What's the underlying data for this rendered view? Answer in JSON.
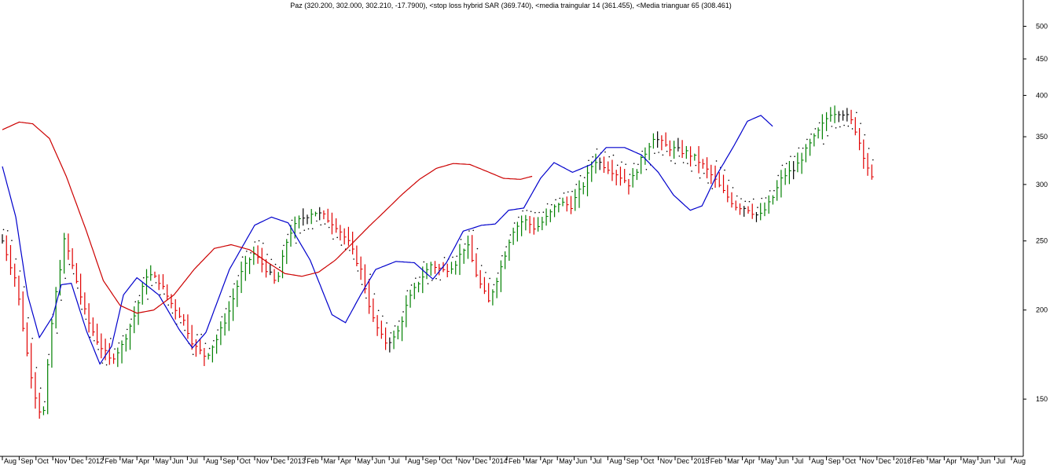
{
  "chart_data": {
    "type": "bar",
    "variant": "OHLC weekly price bars with moving averages and parabolic SAR dots (log price scale)",
    "title": "Paz (320.200, 302.000, 302.210, -17.7900), <stop loss hybrid SAR (369.740), <media traingular 14 (361.455), <Media trianguar  65 (308.461)",
    "xlabel": "",
    "ylabel": "",
    "yscale": "log",
    "ylim": [
      125,
      520
    ],
    "y_ticks": [
      150,
      200,
      250,
      300,
      350,
      400,
      450,
      500
    ],
    "x_ticks": [
      "Aug",
      "Sep",
      "Oct",
      "Nov",
      "Dec",
      "2012",
      "Feb",
      "Mar",
      "Apr",
      "May",
      "Jun",
      "Jul",
      "Aug",
      "Sep",
      "Oct",
      "Nov",
      "Dec",
      "2013",
      "Feb",
      "Mar",
      "Apr",
      "May",
      "Jun",
      "Jul",
      "Aug",
      "Sep",
      "Oct",
      "Nov",
      "Dec",
      "2014",
      "Feb",
      "Mar",
      "Apr",
      "May",
      "Jun",
      "Jul",
      "Aug",
      "Sep",
      "Oct",
      "Nov",
      "Dec",
      "2015",
      "Feb",
      "Mar",
      "Apr",
      "May",
      "Jun",
      "Jul",
      "Aug",
      "Sep",
      "Oct",
      "Nov",
      "Dec",
      "2016",
      "Feb",
      "Mar",
      "Apr",
      "May",
      "Jun",
      "Jul",
      "Aug"
    ],
    "grid": false,
    "legend": "none (series described in title)",
    "colors": {
      "up_bar": "#008000",
      "down_bar": "#e00000",
      "neutral_bar": "#000000",
      "fast_ma": "#0000cc",
      "slow_ma": "#cc0000",
      "sar": "#000000",
      "axis": "#000000"
    },
    "bar_anchors": [
      [
        0,
        250
      ],
      [
        0.8,
        220
      ],
      [
        1.5,
        172
      ],
      [
        2.0,
        150
      ],
      [
        2.4,
        140
      ],
      [
        3.0,
        198
      ],
      [
        3.7,
        252
      ],
      [
        4.4,
        220
      ],
      [
        5.0,
        195
      ],
      [
        5.7,
        180
      ],
      [
        6.4,
        170
      ],
      [
        7.1,
        178
      ],
      [
        7.9,
        198
      ],
      [
        8.6,
        225
      ],
      [
        9.3,
        220
      ],
      [
        10.0,
        205
      ],
      [
        10.7,
        195
      ],
      [
        11.4,
        178
      ],
      [
        12.1,
        172
      ],
      [
        12.8,
        183
      ],
      [
        13.5,
        200
      ],
      [
        14.2,
        225
      ],
      [
        14.9,
        240
      ],
      [
        15.6,
        230
      ],
      [
        16.3,
        217
      ],
      [
        17.0,
        255
      ],
      [
        17.7,
        268
      ],
      [
        18.5,
        275
      ],
      [
        19.2,
        270
      ],
      [
        19.9,
        262
      ],
      [
        20.6,
        248
      ],
      [
        21.3,
        228
      ],
      [
        22.0,
        195
      ],
      [
        22.7,
        180
      ],
      [
        23.4,
        183
      ],
      [
        24.1,
        205
      ],
      [
        24.8,
        220
      ],
      [
        25.5,
        232
      ],
      [
        26.2,
        227
      ],
      [
        26.9,
        232
      ],
      [
        27.6,
        248
      ],
      [
        28.3,
        220
      ],
      [
        28.9,
        205
      ],
      [
        29.6,
        228
      ],
      [
        30.3,
        258
      ],
      [
        31.0,
        268
      ],
      [
        31.7,
        260
      ],
      [
        32.4,
        270
      ],
      [
        33.1,
        283
      ],
      [
        33.8,
        280
      ],
      [
        34.5,
        298
      ],
      [
        35.2,
        325
      ],
      [
        35.9,
        318
      ],
      [
        36.6,
        310
      ],
      [
        37.3,
        300
      ],
      [
        38.0,
        325
      ],
      [
        38.7,
        350
      ],
      [
        39.4,
        340
      ],
      [
        40.1,
        335
      ],
      [
        40.8,
        332
      ],
      [
        41.5,
        322
      ],
      [
        42.2,
        308
      ],
      [
        42.9,
        292
      ],
      [
        43.6,
        280
      ],
      [
        44.3,
        278
      ],
      [
        45.0,
        270
      ],
      [
        45.7,
        284
      ],
      [
        46.4,
        308
      ],
      [
        47.1,
        315
      ],
      [
        47.8,
        335
      ],
      [
        48.5,
        355
      ],
      [
        49.2,
        378
      ],
      [
        49.9,
        380
      ],
      [
        50.6,
        365
      ],
      [
        51.2,
        330
      ],
      [
        51.7,
        305
      ]
    ],
    "series": [
      {
        "name": "media traingular 14",
        "style": "line",
        "points": [
          [
            0,
            318
          ],
          [
            0.8,
            270
          ],
          [
            1.5,
            210
          ],
          [
            2.2,
            183
          ],
          [
            3.0,
            196
          ],
          [
            3.5,
            217
          ],
          [
            4.1,
            218
          ],
          [
            5.0,
            187
          ],
          [
            5.8,
            168
          ],
          [
            6.5,
            178
          ],
          [
            7.2,
            210
          ],
          [
            8.0,
            222
          ],
          [
            9.3,
            210
          ],
          [
            10.5,
            188
          ],
          [
            11.3,
            177
          ],
          [
            12.1,
            186
          ],
          [
            13.5,
            228
          ],
          [
            15.0,
            263
          ],
          [
            16.0,
            270
          ],
          [
            17.0,
            265
          ],
          [
            18.3,
            235
          ],
          [
            19.6,
            197
          ],
          [
            20.4,
            192
          ],
          [
            21.3,
            210
          ],
          [
            22.2,
            228
          ],
          [
            23.4,
            234
          ],
          [
            24.5,
            233
          ],
          [
            25.6,
            221
          ],
          [
            26.4,
            233
          ],
          [
            27.4,
            258
          ],
          [
            28.5,
            263
          ],
          [
            29.3,
            264
          ],
          [
            30.1,
            276
          ],
          [
            31.0,
            278
          ],
          [
            32.0,
            306
          ],
          [
            32.8,
            322
          ],
          [
            33.9,
            312
          ],
          [
            35.0,
            320
          ],
          [
            35.9,
            338
          ],
          [
            37.0,
            338
          ],
          [
            38.0,
            330
          ],
          [
            39.0,
            312
          ],
          [
            39.9,
            290
          ],
          [
            40.9,
            276
          ],
          [
            41.6,
            280
          ],
          [
            42.5,
            310
          ],
          [
            43.5,
            340
          ],
          [
            44.3,
            368
          ],
          [
            45.1,
            375
          ],
          [
            45.8,
            362
          ]
        ]
      },
      {
        "name": "Media trianguar  65",
        "style": "line",
        "points": [
          [
            0,
            358
          ],
          [
            1.0,
            367
          ],
          [
            1.8,
            365
          ],
          [
            2.8,
            348
          ],
          [
            3.8,
            308
          ],
          [
            5.0,
            258
          ],
          [
            6.0,
            220
          ],
          [
            7.0,
            203
          ],
          [
            8.0,
            198
          ],
          [
            9.0,
            200
          ],
          [
            10.2,
            210
          ],
          [
            11.4,
            228
          ],
          [
            12.6,
            244
          ],
          [
            13.6,
            247
          ],
          [
            14.7,
            243
          ],
          [
            15.8,
            233
          ],
          [
            16.8,
            225
          ],
          [
            17.8,
            223
          ],
          [
            18.8,
            226
          ],
          [
            19.8,
            235
          ],
          [
            20.8,
            248
          ],
          [
            21.8,
            262
          ],
          [
            22.8,
            276
          ],
          [
            23.8,
            291
          ],
          [
            24.8,
            305
          ],
          [
            25.8,
            316
          ],
          [
            26.8,
            321
          ],
          [
            27.8,
            320
          ],
          [
            28.8,
            313
          ],
          [
            29.8,
            306
          ],
          [
            30.8,
            305
          ],
          [
            31.5,
            308
          ]
        ]
      },
      {
        "name": "stop loss hybrid SAR",
        "style": "dots",
        "value_last": 369.74
      }
    ],
    "last_bar": {
      "high": 320.2,
      "low": 302.0,
      "close": 302.21,
      "change": -17.79
    }
  }
}
